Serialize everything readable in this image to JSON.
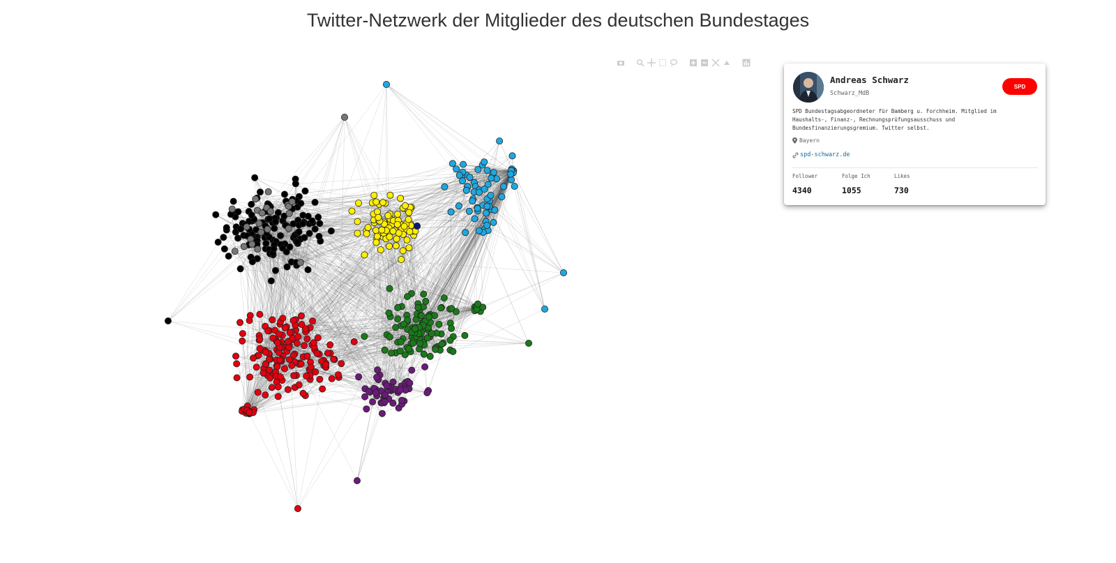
{
  "page": {
    "title": "Twitter-Netzwerk der Mitglieder des deutschen Bundestages"
  },
  "colors": {
    "spd": "#e3000f",
    "cdu_csu": "#000000",
    "cdu_csu_alt": "#777777",
    "gruene": "#1a7a1a",
    "fdp": "#ffee00",
    "afd": "#1fa8e0",
    "linke": "#6a1b7a",
    "edge": "#555555"
  },
  "toolbar": {
    "buttons": [
      "camera-icon",
      "zoom-icon",
      "pan-icon",
      "box-select-icon",
      "lasso-select-icon",
      "zoom-in-icon",
      "zoom-out-icon",
      "autoscale-icon",
      "reset-axes-icon",
      "plotly-logo-icon"
    ]
  },
  "profile": {
    "name": "Andreas Schwarz",
    "handle": "Schwarz_MdB",
    "party": "SPD",
    "party_color": "#ff0000",
    "bio_line1": "SPD Bundestagsabgeordneter für Bamberg u. Forchheim. Mitglied im",
    "bio_line2": "Haushalts-, Finanz-, Rechnungsprüfungsausschuss und",
    "bio_line3": "Bundesfinanzierungsgremium. Twitter selbst.",
    "location": "Bayern",
    "website": "spd-schwarz.de",
    "stats": [
      {
        "label": "Follower",
        "value": "4340"
      },
      {
        "label": "Folge Ich",
        "value": "1055"
      },
      {
        "label": "Likes",
        "value": "730"
      }
    ]
  }
}
